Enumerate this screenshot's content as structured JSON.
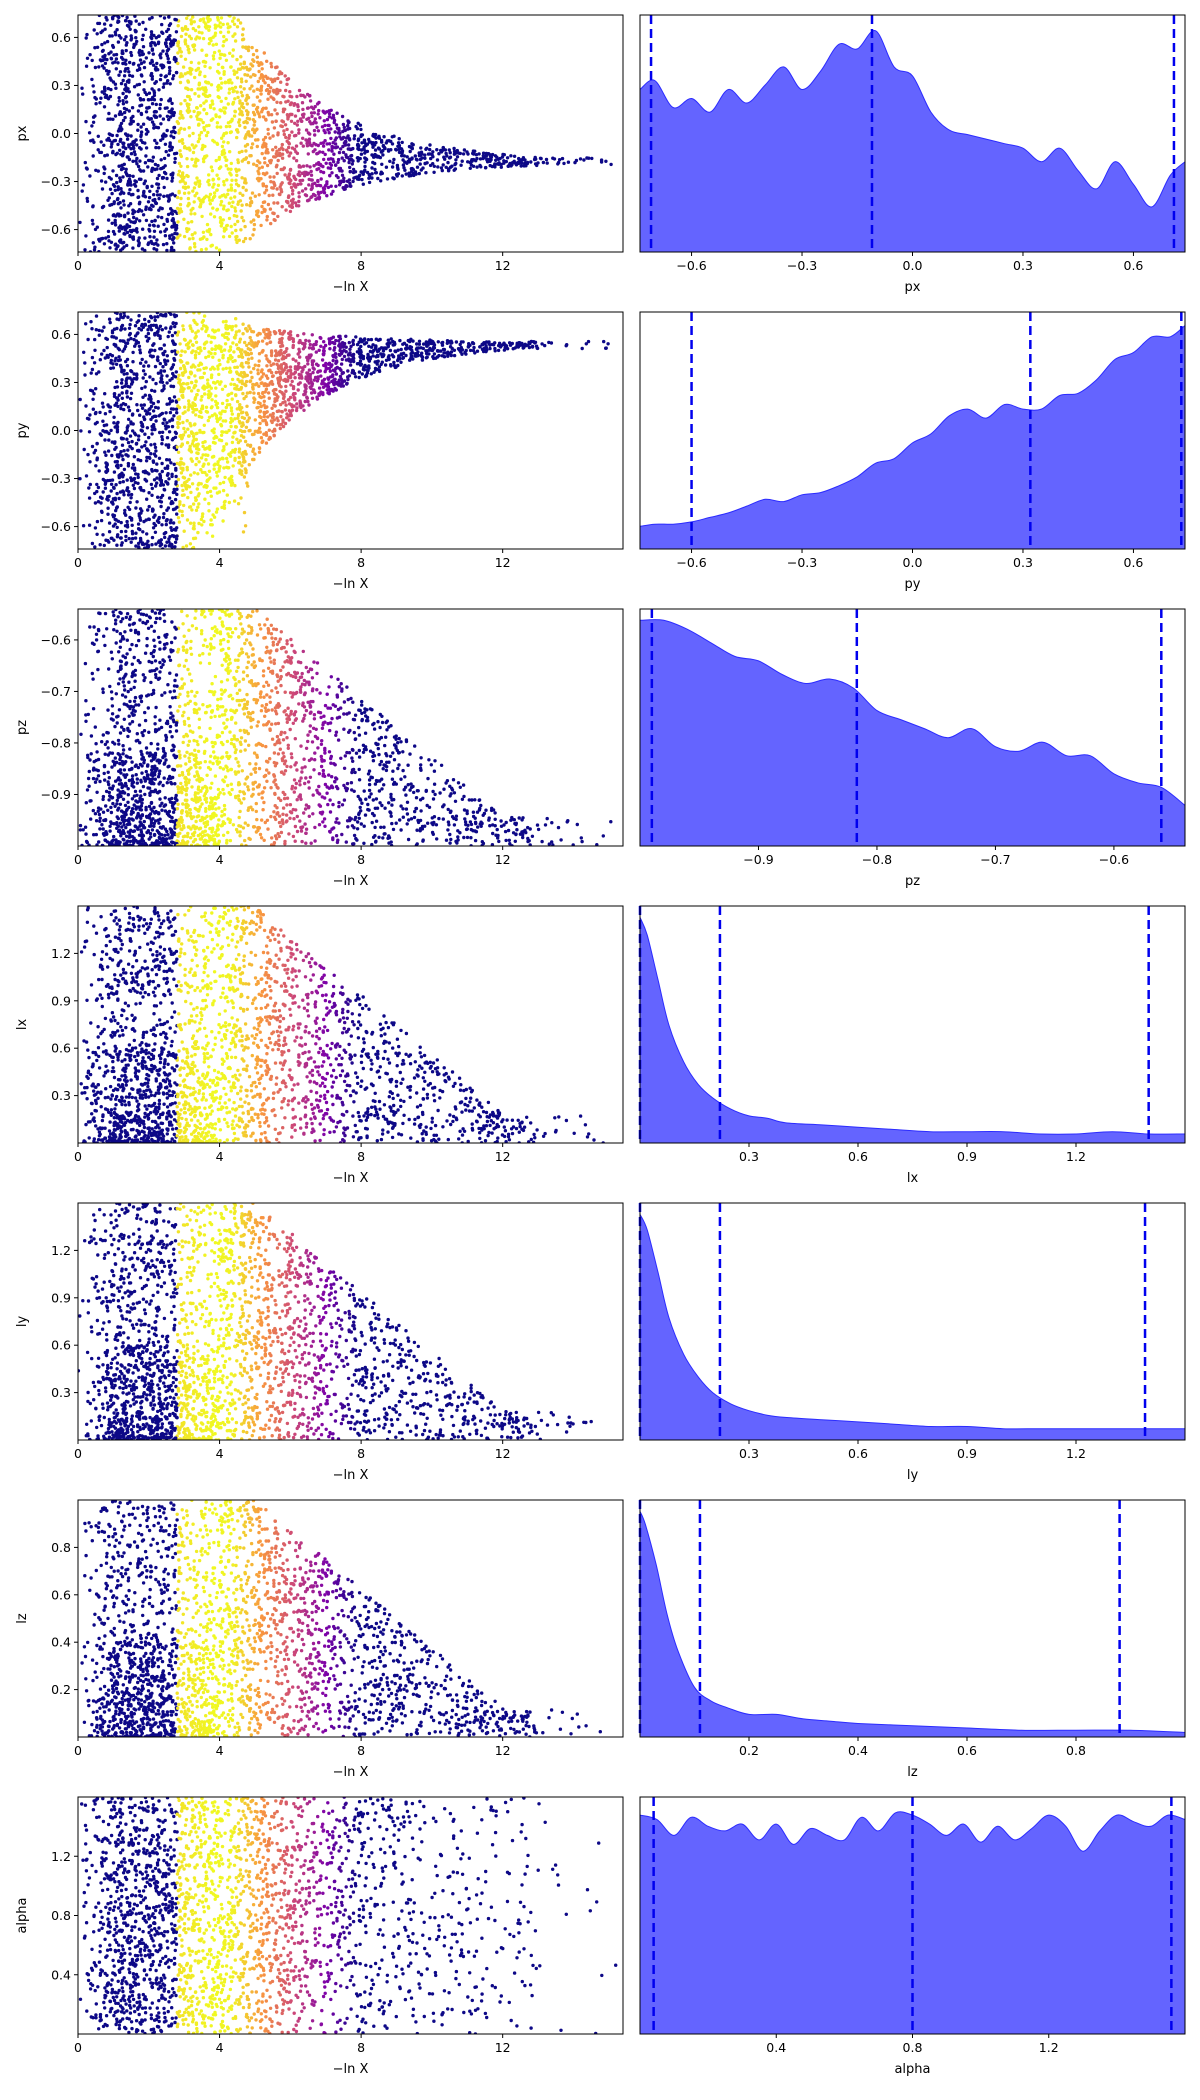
{
  "colors": {
    "kde_fill": "#6464ff",
    "kde_line": "#2b2bff",
    "quantile_line": "#0000ee",
    "colormap": "plasma"
  },
  "chart_data": [
    {
      "type": "scatter",
      "param": "px",
      "xlabel": "−ln X",
      "ylabel": "px",
      "xlim": [
        0,
        15.4
      ],
      "ylim": [
        -0.74,
        0.74
      ],
      "xticks": [
        {
          "v": 0,
          "label": "0"
        },
        {
          "v": 4,
          "label": "4"
        },
        {
          "v": 8,
          "label": "8"
        },
        {
          "v": 12,
          "label": "12"
        }
      ],
      "yticks": [
        {
          "v": -0.6,
          "label": "−0.6"
        },
        {
          "v": -0.3,
          "label": "−0.3"
        },
        {
          "v": 0.0,
          "label": "0.0"
        },
        {
          "v": 0.3,
          "label": "0.3"
        },
        {
          "v": 0.6,
          "label": "0.6"
        }
      ],
      "shape": "converge",
      "center": -0.18,
      "lower_edge": -0.74,
      "upper_edge": 0.74,
      "truncate_before": 4.5
    },
    {
      "type": "area",
      "param": "px",
      "xlabel": "px",
      "xlim": [
        -0.74,
        0.74
      ],
      "xticks": [
        {
          "v": -0.6,
          "label": "−0.6"
        },
        {
          "v": -0.3,
          "label": "−0.3"
        },
        {
          "v": 0.0,
          "label": "0.0"
        },
        {
          "v": 0.3,
          "label": "0.3"
        },
        {
          "v": 0.6,
          "label": "0.6"
        }
      ],
      "kde_x": [
        -0.74,
        -0.7,
        -0.65,
        -0.6,
        -0.55,
        -0.5,
        -0.45,
        -0.4,
        -0.35,
        -0.3,
        -0.25,
        -0.2,
        -0.15,
        -0.1,
        -0.05,
        0.0,
        0.05,
        0.1,
        0.15,
        0.2,
        0.25,
        0.3,
        0.35,
        0.4,
        0.45,
        0.5,
        0.55,
        0.6,
        0.65,
        0.7,
        0.74
      ],
      "kde_y": [
        0.72,
        0.76,
        0.64,
        0.68,
        0.62,
        0.72,
        0.66,
        0.74,
        0.82,
        0.72,
        0.8,
        0.92,
        0.9,
        0.98,
        0.82,
        0.78,
        0.62,
        0.54,
        0.52,
        0.5,
        0.48,
        0.46,
        0.4,
        0.46,
        0.36,
        0.28,
        0.4,
        0.3,
        0.2,
        0.34,
        0.4
      ],
      "kde_ymax": 1.0,
      "quantiles": [
        -0.71,
        -0.11,
        0.71
      ]
    },
    {
      "type": "scatter",
      "param": "py",
      "xlabel": "−ln X",
      "ylabel": "py",
      "xlim": [
        0,
        15.4
      ],
      "ylim": [
        -0.74,
        0.74
      ],
      "xticks": [
        {
          "v": 0,
          "label": "0"
        },
        {
          "v": 4,
          "label": "4"
        },
        {
          "v": 8,
          "label": "8"
        },
        {
          "v": 12,
          "label": "12"
        }
      ],
      "yticks": [
        {
          "v": -0.6,
          "label": "−0.6"
        },
        {
          "v": -0.3,
          "label": "−0.3"
        },
        {
          "v": 0.0,
          "label": "0.0"
        },
        {
          "v": 0.3,
          "label": "0.3"
        },
        {
          "v": 0.6,
          "label": "0.6"
        }
      ],
      "shape": "converge",
      "center": 0.55,
      "lower_edge": -0.74,
      "upper_edge": 0.74,
      "truncate_before": 3.5
    },
    {
      "type": "area",
      "param": "py",
      "xlabel": "py",
      "xlim": [
        -0.74,
        0.74
      ],
      "xticks": [
        {
          "v": -0.6,
          "label": "−0.6"
        },
        {
          "v": -0.3,
          "label": "−0.3"
        },
        {
          "v": 0.0,
          "label": "0.0"
        },
        {
          "v": 0.3,
          "label": "0.3"
        },
        {
          "v": 0.6,
          "label": "0.6"
        }
      ],
      "kde_x": [
        -0.74,
        -0.7,
        -0.65,
        -0.6,
        -0.55,
        -0.5,
        -0.45,
        -0.4,
        -0.35,
        -0.3,
        -0.25,
        -0.2,
        -0.15,
        -0.1,
        -0.05,
        0.0,
        0.05,
        0.1,
        0.15,
        0.2,
        0.25,
        0.3,
        0.35,
        0.4,
        0.45,
        0.5,
        0.55,
        0.6,
        0.65,
        0.7,
        0.74
      ],
      "kde_y": [
        0.1,
        0.11,
        0.11,
        0.12,
        0.14,
        0.16,
        0.19,
        0.22,
        0.21,
        0.24,
        0.25,
        0.28,
        0.32,
        0.38,
        0.4,
        0.47,
        0.51,
        0.59,
        0.62,
        0.58,
        0.64,
        0.62,
        0.62,
        0.68,
        0.69,
        0.75,
        0.84,
        0.87,
        0.94,
        0.94,
        0.99
      ],
      "kde_ymax": 1.0,
      "quantiles": [
        -0.6,
        0.32,
        0.73
      ]
    },
    {
      "type": "scatter",
      "param": "pz",
      "xlabel": "−ln X",
      "ylabel": "pz",
      "xlim": [
        0,
        15.4
      ],
      "ylim": [
        -1.0,
        -0.54
      ],
      "xticks": [
        {
          "v": 0,
          "label": "0"
        },
        {
          "v": 4,
          "label": "4"
        },
        {
          "v": 8,
          "label": "8"
        },
        {
          "v": 12,
          "label": "12"
        }
      ],
      "yticks": [
        {
          "v": -0.9,
          "label": "−0.9"
        },
        {
          "v": -0.8,
          "label": "−0.8"
        },
        {
          "v": -0.7,
          "label": "−0.7"
        },
        {
          "v": -0.6,
          "label": "−0.6"
        }
      ],
      "shape": "lower",
      "center": -1.0,
      "lower_edge": -1.0,
      "upper_edge": -0.54,
      "truncate_before": 0
    },
    {
      "type": "area",
      "param": "pz",
      "xlabel": "pz",
      "xlim": [
        -1.0,
        -0.54
      ],
      "xticks": [
        {
          "v": -0.9,
          "label": "−0.9"
        },
        {
          "v": -0.8,
          "label": "−0.8"
        },
        {
          "v": -0.7,
          "label": "−0.7"
        },
        {
          "v": -0.6,
          "label": "−0.6"
        }
      ],
      "kde_x": [
        -1.0,
        -0.98,
        -0.96,
        -0.94,
        -0.92,
        -0.9,
        -0.88,
        -0.86,
        -0.84,
        -0.82,
        -0.8,
        -0.78,
        -0.76,
        -0.74,
        -0.72,
        -0.7,
        -0.68,
        -0.66,
        -0.64,
        -0.62,
        -0.6,
        -0.58,
        -0.56,
        -0.54
      ],
      "kde_y": [
        1.0,
        1.0,
        0.96,
        0.9,
        0.84,
        0.82,
        0.76,
        0.72,
        0.74,
        0.7,
        0.6,
        0.56,
        0.52,
        0.48,
        0.52,
        0.44,
        0.42,
        0.46,
        0.4,
        0.4,
        0.32,
        0.28,
        0.26,
        0.18
      ],
      "kde_ymax": 1.0,
      "quantiles": [
        -0.99,
        -0.817,
        -0.56
      ]
    },
    {
      "type": "scatter",
      "param": "lx",
      "xlabel": "−ln X",
      "ylabel": "lx",
      "xlim": [
        0,
        15.4
      ],
      "ylim": [
        0,
        1.5
      ],
      "xticks": [
        {
          "v": 0,
          "label": "0"
        },
        {
          "v": 4,
          "label": "4"
        },
        {
          "v": 8,
          "label": "8"
        },
        {
          "v": 12,
          "label": "12"
        }
      ],
      "yticks": [
        {
          "v": 0.3,
          "label": "0.3"
        },
        {
          "v": 0.6,
          "label": "0.6"
        },
        {
          "v": 0.9,
          "label": "0.9"
        },
        {
          "v": 1.2,
          "label": "1.2"
        }
      ],
      "shape": "lower",
      "center": 0,
      "lower_edge": 0,
      "upper_edge": 1.5,
      "truncate_before": 0
    },
    {
      "type": "area",
      "param": "lx",
      "xlabel": "lx",
      "xlim": [
        0,
        1.5
      ],
      "xticks": [
        {
          "v": 0.3,
          "label": "0.3"
        },
        {
          "v": 0.6,
          "label": "0.6"
        },
        {
          "v": 0.9,
          "label": "0.9"
        },
        {
          "v": 1.2,
          "label": "1.2"
        }
      ],
      "kde_x": [
        0.0,
        0.02,
        0.05,
        0.08,
        0.12,
        0.16,
        0.2,
        0.25,
        0.3,
        0.35,
        0.4,
        0.5,
        0.6,
        0.7,
        0.8,
        0.9,
        1.0,
        1.1,
        1.2,
        1.3,
        1.4,
        1.5
      ],
      "kde_y": [
        1.0,
        0.92,
        0.72,
        0.52,
        0.36,
        0.26,
        0.2,
        0.15,
        0.12,
        0.11,
        0.09,
        0.08,
        0.07,
        0.06,
        0.05,
        0.05,
        0.05,
        0.04,
        0.04,
        0.05,
        0.04,
        0.04
      ],
      "kde_ymax": 1.0,
      "quantiles": [
        0.0,
        0.22,
        1.4
      ]
    },
    {
      "type": "scatter",
      "param": "ly",
      "xlabel": "−ln X",
      "ylabel": "ly",
      "xlim": [
        0,
        15.4
      ],
      "ylim": [
        0,
        1.5
      ],
      "xticks": [
        {
          "v": 0,
          "label": "0"
        },
        {
          "v": 4,
          "label": "4"
        },
        {
          "v": 8,
          "label": "8"
        },
        {
          "v": 12,
          "label": "12"
        }
      ],
      "yticks": [
        {
          "v": 0.3,
          "label": "0.3"
        },
        {
          "v": 0.6,
          "label": "0.6"
        },
        {
          "v": 0.9,
          "label": "0.9"
        },
        {
          "v": 1.2,
          "label": "1.2"
        }
      ],
      "shape": "lower",
      "center": 0,
      "lower_edge": 0,
      "upper_edge": 1.5,
      "truncate_before": 0
    },
    {
      "type": "area",
      "param": "ly",
      "xlabel": "ly",
      "xlim": [
        0,
        1.5
      ],
      "xticks": [
        {
          "v": 0.3,
          "label": "0.3"
        },
        {
          "v": 0.6,
          "label": "0.6"
        },
        {
          "v": 0.9,
          "label": "0.9"
        },
        {
          "v": 1.2,
          "label": "1.2"
        }
      ],
      "kde_x": [
        0.0,
        0.02,
        0.05,
        0.08,
        0.12,
        0.16,
        0.2,
        0.25,
        0.3,
        0.35,
        0.4,
        0.5,
        0.6,
        0.7,
        0.8,
        0.9,
        1.0,
        1.1,
        1.2,
        1.3,
        1.4,
        1.5
      ],
      "kde_y": [
        1.0,
        0.93,
        0.74,
        0.54,
        0.38,
        0.28,
        0.21,
        0.16,
        0.13,
        0.11,
        0.1,
        0.09,
        0.08,
        0.07,
        0.06,
        0.06,
        0.05,
        0.05,
        0.05,
        0.05,
        0.05,
        0.05
      ],
      "kde_ymax": 1.0,
      "quantiles": [
        0.0,
        0.22,
        1.39
      ]
    },
    {
      "type": "scatter",
      "param": "lz",
      "xlabel": "−ln X",
      "ylabel": "lz",
      "xlim": [
        0,
        15.4
      ],
      "ylim": [
        0,
        1.0
      ],
      "xticks": [
        {
          "v": 0,
          "label": "0"
        },
        {
          "v": 4,
          "label": "4"
        },
        {
          "v": 8,
          "label": "8"
        },
        {
          "v": 12,
          "label": "12"
        }
      ],
      "yticks": [
        {
          "v": 0.2,
          "label": "0.2"
        },
        {
          "v": 0.4,
          "label": "0.4"
        },
        {
          "v": 0.6,
          "label": "0.6"
        },
        {
          "v": 0.8,
          "label": "0.8"
        }
      ],
      "shape": "lower",
      "center": 0,
      "lower_edge": 0,
      "upper_edge": 1.0,
      "truncate_before": 0
    },
    {
      "type": "area",
      "param": "lz",
      "xlabel": "lz",
      "xlim": [
        0,
        1.0
      ],
      "xticks": [
        {
          "v": 0.2,
          "label": "0.2"
        },
        {
          "v": 0.4,
          "label": "0.4"
        },
        {
          "v": 0.6,
          "label": "0.6"
        },
        {
          "v": 0.8,
          "label": "0.8"
        }
      ],
      "kde_x": [
        0.0,
        0.01,
        0.03,
        0.05,
        0.07,
        0.1,
        0.13,
        0.16,
        0.2,
        0.25,
        0.3,
        0.35,
        0.4,
        0.5,
        0.6,
        0.7,
        0.8,
        0.9,
        1.0
      ],
      "kde_y": [
        1.0,
        0.94,
        0.76,
        0.54,
        0.38,
        0.22,
        0.16,
        0.13,
        0.1,
        0.1,
        0.08,
        0.07,
        0.06,
        0.05,
        0.04,
        0.03,
        0.03,
        0.03,
        0.02
      ],
      "kde_ymax": 1.0,
      "quantiles": [
        0.0,
        0.11,
        0.88
      ]
    },
    {
      "type": "scatter",
      "param": "alpha",
      "xlabel": "−ln X",
      "ylabel": "alpha",
      "xlim": [
        0,
        15.4
      ],
      "ylim": [
        0,
        1.6
      ],
      "xticks": [
        {
          "v": 0,
          "label": "0"
        },
        {
          "v": 4,
          "label": "4"
        },
        {
          "v": 8,
          "label": "8"
        },
        {
          "v": 12,
          "label": "12"
        }
      ],
      "yticks": [
        {
          "v": 0.4,
          "label": "0.4"
        },
        {
          "v": 0.8,
          "label": "0.8"
        },
        {
          "v": 1.2,
          "label": "1.2"
        }
      ],
      "shape": "uniform",
      "center": 0.8,
      "lower_edge": 0,
      "upper_edge": 1.6,
      "truncate_before": 0
    },
    {
      "type": "area",
      "param": "alpha",
      "xlabel": "alpha",
      "xlim": [
        0,
        1.6
      ],
      "xticks": [
        {
          "v": 0.4,
          "label": "0.4"
        },
        {
          "v": 0.8,
          "label": "0.8"
        },
        {
          "v": 1.2,
          "label": "1.2"
        }
      ],
      "kde_x": [
        0.0,
        0.05,
        0.1,
        0.15,
        0.2,
        0.25,
        0.3,
        0.35,
        0.4,
        0.45,
        0.5,
        0.55,
        0.6,
        0.65,
        0.7,
        0.75,
        0.8,
        0.85,
        0.9,
        0.95,
        1.0,
        1.05,
        1.1,
        1.15,
        1.2,
        1.25,
        1.3,
        1.35,
        1.4,
        1.45,
        1.5,
        1.55,
        1.6
      ],
      "kde_y": [
        0.97,
        0.95,
        0.88,
        0.96,
        0.92,
        0.9,
        0.93,
        0.86,
        0.93,
        0.84,
        0.91,
        0.88,
        0.86,
        0.96,
        0.9,
        0.98,
        0.97,
        0.93,
        0.88,
        0.93,
        0.85,
        0.92,
        0.86,
        0.91,
        0.97,
        0.92,
        0.81,
        0.9,
        0.97,
        0.94,
        0.92,
        0.97,
        0.95
      ],
      "kde_ymax": 1.0,
      "quantiles": [
        0.04,
        0.8,
        1.56
      ]
    }
  ]
}
